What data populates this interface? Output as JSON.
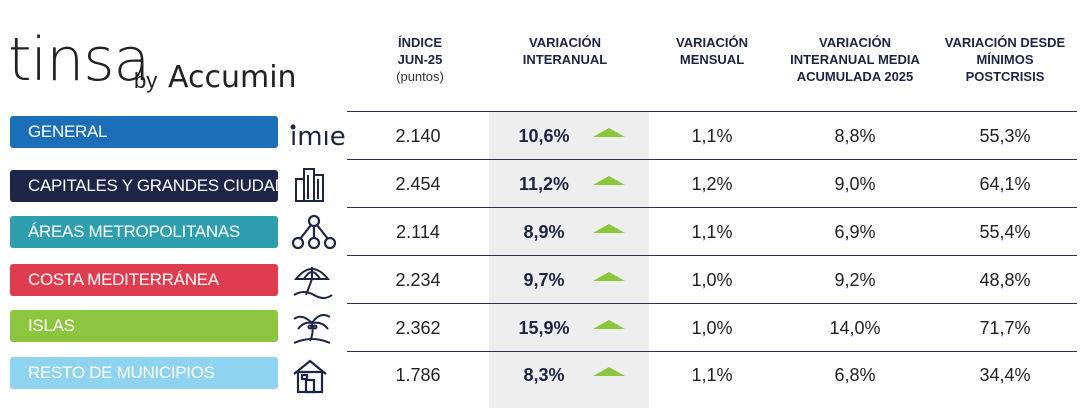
{
  "logo": {
    "brand": "tinsa",
    "by": "by",
    "partner": "Accumin",
    "index_brand": "imie"
  },
  "headers": [
    {
      "lines": [
        "ÍNDICE",
        "Jun-25"
      ],
      "sub": "(puntos)"
    },
    {
      "lines": [
        "VARIACIÓN",
        "INTERANUAL"
      ],
      "sub": ""
    },
    {
      "lines": [
        "VARIACIÓN",
        "MENSUAL"
      ],
      "sub": ""
    },
    {
      "lines": [
        "VARIACIÓN",
        "INTERANUAL MEDIA",
        "ACUMULADA 2025"
      ],
      "sub": ""
    },
    {
      "lines": [
        "VARIACIÓN DESDE",
        "MÍNIMOS",
        "POSTCRISIS"
      ],
      "sub": ""
    }
  ],
  "rows": [
    {
      "label": "GENERAL",
      "color": "#1b6fb8",
      "icon": "imie-logo-icon",
      "indice": "2.140",
      "interanual": "10,6%",
      "mensual": "1,1%",
      "media": "8,8%",
      "minimos": "55,3%"
    },
    {
      "label": "CAPITALES Y GRANDES CIUDADES",
      "color": "#1f2449",
      "icon": "city-buildings-icon",
      "indice": "2.454",
      "interanual": "11,2%",
      "mensual": "1,2%",
      "media": "9,0%",
      "minimos": "64,1%"
    },
    {
      "label": "ÁREAS METROPOLITANAS",
      "color": "#2f9fb0",
      "icon": "network-nodes-icon",
      "indice": "2.114",
      "interanual": "8,9%",
      "mensual": "1,1%",
      "media": "6,9%",
      "minimos": "55,4%"
    },
    {
      "label": "COSTA MEDITERRÁNEA",
      "color": "#e03c4f",
      "icon": "beach-umbrella-icon",
      "indice": "2.234",
      "interanual": "9,7%",
      "mensual": "1,0%",
      "media": "9,2%",
      "minimos": "48,8%"
    },
    {
      "label": "ISLAS",
      "color": "#8cc63f",
      "icon": "palm-island-icon",
      "indice": "2.362",
      "interanual": "15,9%",
      "mensual": "1,0%",
      "media": "14,0%",
      "minimos": "71,7%"
    },
    {
      "label": "RESTO DE MUNICIPIOS",
      "color": "#8ed4f0",
      "icon": "house-icon",
      "indice": "1.786",
      "interanual": "8,3%",
      "mensual": "1,1%",
      "media": "6,8%",
      "minimos": "34,4%"
    }
  ],
  "trend_color": "#8cc63f"
}
